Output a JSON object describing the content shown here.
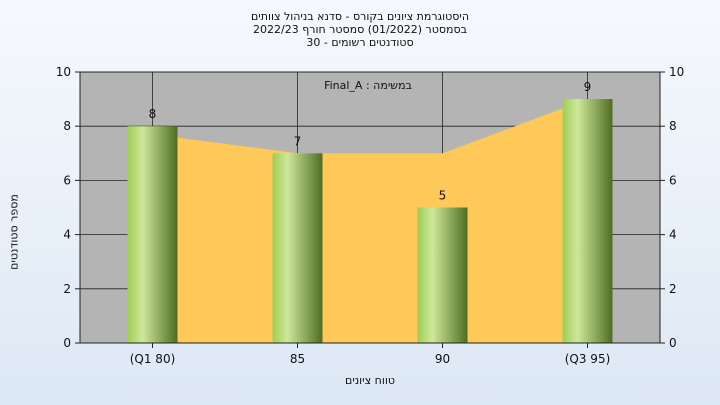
{
  "chart_data": {
    "type": "bar",
    "title": "היסטוגרמת ציונים בקורס - סדנא בניהול צוותים",
    "subtitle": "בסמסטר  (01/2022)  סמסטר חורף 2022/23",
    "subtitle2": "סטודנטים רשומים - 30",
    "annotation": "Final_A : במשימה",
    "ylabel": "מספר סטודנטים",
    "xlabel": "טווח ציונים",
    "categories": [
      "(Q1 80)",
      "85",
      "90",
      "(Q3 95)"
    ],
    "values": [
      8,
      7,
      5,
      9
    ],
    "area_values": [
      7.7,
      7,
      7,
      9
    ],
    "ylim": [
      0,
      10
    ],
    "yticks": [
      0,
      2,
      4,
      6,
      8,
      10
    ],
    "ytick_labels": [
      "0",
      "2",
      "4",
      "6",
      "8",
      "10"
    ],
    "grid": true,
    "colors": {
      "plot_bg": "#b4b4b4",
      "area": "#ffc95a",
      "bar_light": "#cde89a",
      "bar_mid": "#9fcc55",
      "bar_dark": "#4f6d22"
    }
  }
}
